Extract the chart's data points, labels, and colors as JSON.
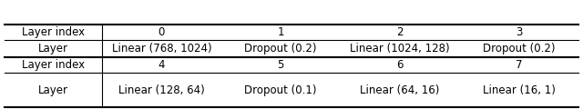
{
  "row1_label": "Layer index",
  "row2_label": "Layer",
  "row3_label": "Layer index",
  "row4_label": "Layer",
  "row1_data": [
    "0",
    "1",
    "2",
    "3"
  ],
  "row2_data": [
    "Linear (768, 1024)",
    "Dropout (0.2)",
    "Linear (1024, 128)",
    "Dropout (0.2)"
  ],
  "row3_data": [
    "4",
    "5",
    "6",
    "7"
  ],
  "row4_data": [
    "Linear (128, 64)",
    "Dropout (0.1)",
    "Linear (64, 16)",
    "Linear (16, 1)"
  ],
  "bg_color": "#ffffff",
  "text_color": "#000000",
  "fontsize": 8.5
}
